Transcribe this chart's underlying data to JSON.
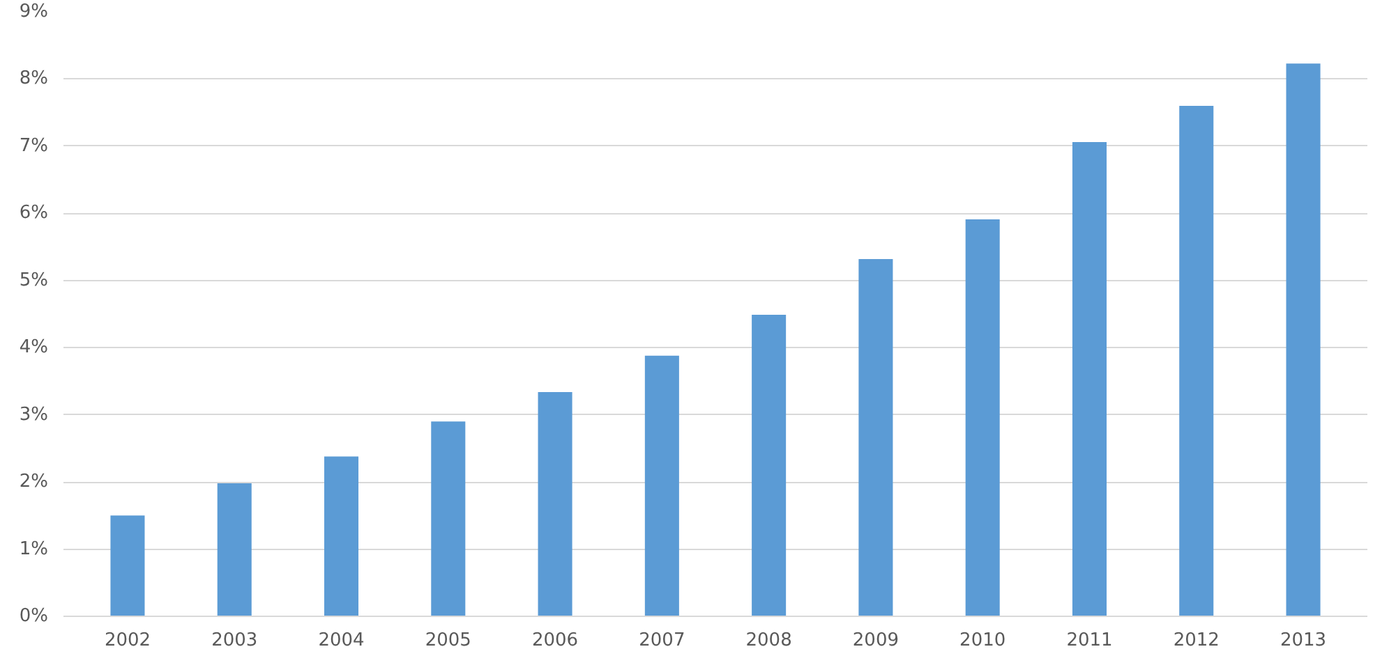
{
  "chart_data": {
    "type": "bar",
    "categories": [
      "2002",
      "2003",
      "2004",
      "2005",
      "2006",
      "2007",
      "2008",
      "2009",
      "2010",
      "2011",
      "2012",
      "2013"
    ],
    "values": [
      1.5,
      1.98,
      2.38,
      2.9,
      3.34,
      3.88,
      4.49,
      5.32,
      5.91,
      7.06,
      7.6,
      8.23
    ],
    "color": "#5b9bd5",
    "ylim": [
      0,
      9
    ],
    "yticks": [
      {
        "value": 0,
        "label": "0%"
      },
      {
        "value": 1,
        "label": "1%"
      },
      {
        "value": 2,
        "label": "2%"
      },
      {
        "value": 3,
        "label": "3%"
      },
      {
        "value": 4,
        "label": "4%"
      },
      {
        "value": 5,
        "label": "5%"
      },
      {
        "value": 6,
        "label": "6%"
      },
      {
        "value": 7,
        "label": "7%"
      },
      {
        "value": 8,
        "label": "8%"
      },
      {
        "value": 9,
        "label": "9%"
      }
    ],
    "grid": "y"
  }
}
